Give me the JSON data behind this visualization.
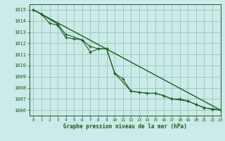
{
  "title": "Graphe pression niveau de la mer (hPa)",
  "bg_color": "#cceaea",
  "plot_bg_color": "#cceaea",
  "line_color": "#1a5c1a",
  "grid_color": "#99ccbb",
  "text_color": "#1a5c1a",
  "ylim": [
    1005.5,
    1015.5
  ],
  "xlim": [
    -0.5,
    23
  ],
  "yticks": [
    1006,
    1007,
    1008,
    1009,
    1010,
    1011,
    1012,
    1013,
    1014,
    1015
  ],
  "xticks": [
    0,
    1,
    2,
    3,
    4,
    5,
    6,
    7,
    8,
    9,
    10,
    11,
    12,
    13,
    14,
    15,
    16,
    17,
    18,
    19,
    20,
    21,
    22,
    23
  ],
  "series1_x": [
    0,
    1,
    2,
    3,
    4,
    5,
    6,
    7,
    8,
    9,
    10,
    11,
    12,
    13,
    14,
    15,
    16,
    17,
    18,
    19,
    20,
    21,
    22,
    23
  ],
  "series1_y": [
    1015.0,
    1014.6,
    1013.8,
    1013.6,
    1012.5,
    1012.4,
    1012.3,
    1011.2,
    1011.5,
    1011.5,
    1009.3,
    1008.8,
    1007.7,
    1007.6,
    1007.5,
    1007.5,
    1007.3,
    1007.0,
    1007.0,
    1006.8,
    1006.5,
    1006.2,
    1006.1,
    1006.0
  ],
  "series2_x": [
    0,
    1,
    3,
    4,
    6,
    7,
    8,
    9,
    10,
    12,
    14,
    15,
    16,
    17,
    19,
    20,
    21,
    22,
    23
  ],
  "series2_y": [
    1015.0,
    1014.6,
    1013.7,
    1012.8,
    1012.3,
    1011.7,
    1011.5,
    1011.5,
    1009.3,
    1007.7,
    1007.5,
    1007.5,
    1007.3,
    1007.0,
    1006.8,
    1006.5,
    1006.2,
    1006.1,
    1006.0
  ],
  "series3_x": [
    0,
    23
  ],
  "series3_y": [
    1015.0,
    1006.0
  ]
}
